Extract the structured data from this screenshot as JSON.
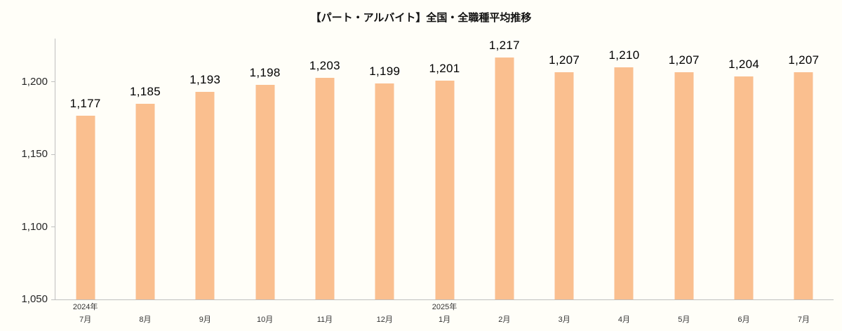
{
  "page": {
    "background": "#FFFEF8"
  },
  "chart_data": {
    "type": "bar",
    "title": "【パート・アルバイト】全国・全職種平均推移",
    "categories": [
      {
        "year": "2024年",
        "month": "7月"
      },
      {
        "year": "",
        "month": "8月"
      },
      {
        "year": "",
        "month": "9月"
      },
      {
        "year": "",
        "month": "10月"
      },
      {
        "year": "",
        "month": "11月"
      },
      {
        "year": "",
        "month": "12月"
      },
      {
        "year": "2025年",
        "month": "1月"
      },
      {
        "year": "",
        "month": "2月"
      },
      {
        "year": "",
        "month": "3月"
      },
      {
        "year": "",
        "month": "4月"
      },
      {
        "year": "",
        "month": "5月"
      },
      {
        "year": "",
        "month": "6月"
      },
      {
        "year": "",
        "month": "7月"
      }
    ],
    "values": [
      1177,
      1185,
      1193,
      1198,
      1203,
      1199,
      1201,
      1217,
      1207,
      1210,
      1207,
      1204,
      1207
    ],
    "value_labels": [
      "1,177",
      "1,185",
      "1,193",
      "1,198",
      "1,203",
      "1,199",
      "1,201",
      "1,217",
      "1,207",
      "1,210",
      "1,207",
      "1,204",
      "1,207"
    ],
    "xlabel": "",
    "ylabel": "",
    "ylim": [
      1050,
      1230
    ],
    "yticks": [
      1050,
      1100,
      1150,
      1200
    ],
    "ytick_labels": [
      "1,050",
      "1,100",
      "1,150",
      "1,200"
    ],
    "bar_color": "#FABF8F",
    "axis_color": "#BFBFBF",
    "grid": false,
    "legend_position": "none"
  }
}
